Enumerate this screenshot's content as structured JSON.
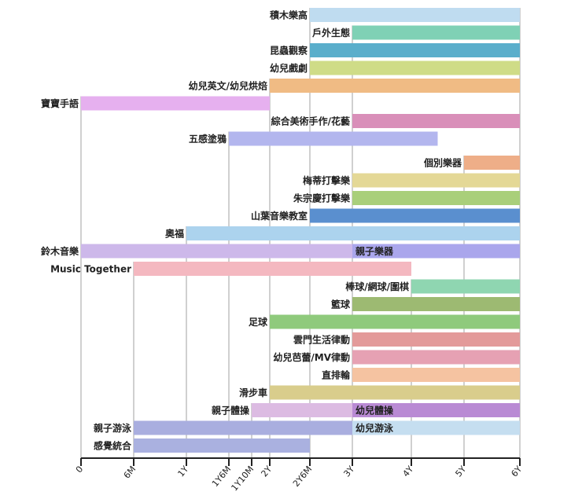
{
  "chart_data": {
    "type": "bar",
    "orientation": "horizontal-range",
    "title": "",
    "xlabel": "",
    "ylabel": "",
    "x_unit": "months of age",
    "xlim": [
      0,
      72
    ],
    "x_scale": "nonlinear (tick spacing as shown)",
    "grid": "vertical lines at ticks",
    "ticks": [
      {
        "label": "0",
        "months": 0
      },
      {
        "label": "6M",
        "months": 6
      },
      {
        "label": "1Y",
        "months": 12
      },
      {
        "label": "1Y6M",
        "months": 18
      },
      {
        "label": "1Y10M",
        "months": 22
      },
      {
        "label": "2Y",
        "months": 24
      },
      {
        "label": "2Y6M",
        "months": 30
      },
      {
        "label": "3Y",
        "months": 36
      },
      {
        "label": "4Y",
        "months": 48
      },
      {
        "label": "5Y",
        "months": 60
      },
      {
        "label": "6Y",
        "months": 72
      }
    ],
    "rows": [
      {
        "label": "積木樂高",
        "segments": [
          {
            "start": 30,
            "end": 72,
            "color": "#bfdcf0"
          }
        ]
      },
      {
        "label": "戶外生態",
        "segments": [
          {
            "start": 36,
            "end": 72,
            "color": "#7fd1b5"
          }
        ]
      },
      {
        "label": "昆蟲觀察",
        "segments": [
          {
            "start": 30,
            "end": 72,
            "color": "#5aaecb"
          }
        ]
      },
      {
        "label": "幼兒戲劇",
        "segments": [
          {
            "start": 30,
            "end": 72,
            "color": "#cfdc87"
          }
        ]
      },
      {
        "label": "幼兒英文/幼兒烘焙",
        "segments": [
          {
            "start": 24,
            "end": 72,
            "color": "#f0bb84"
          }
        ]
      },
      {
        "label": "寶寶手語",
        "segments": [
          {
            "start": 0,
            "end": 24,
            "color": "#e6b0ef"
          }
        ]
      },
      {
        "label": "綜合美術手作/花藝",
        "segments": [
          {
            "start": 36,
            "end": 72,
            "color": "#d98fb9"
          }
        ]
      },
      {
        "label": "五感塗鴉",
        "segments": [
          {
            "start": 18,
            "end": 54,
            "color": "#b3b6ee"
          }
        ]
      },
      {
        "label": "個別樂器",
        "segments": [
          {
            "start": 60,
            "end": 72,
            "color": "#eeae88"
          }
        ],
        "gap_before": true
      },
      {
        "label": "梅蒂打擊樂",
        "segments": [
          {
            "start": 36,
            "end": 72,
            "color": "#e4d896"
          }
        ]
      },
      {
        "label": "朱宗慶打擊樂",
        "segments": [
          {
            "start": 36,
            "end": 72,
            "color": "#a9cf7a"
          }
        ]
      },
      {
        "label": "山葉音樂教室",
        "segments": [
          {
            "start": 30,
            "end": 72,
            "color": "#5a8fcf"
          }
        ]
      },
      {
        "label": "奧福",
        "segments": [
          {
            "start": 12,
            "end": 72,
            "color": "#acd3ee"
          }
        ]
      },
      {
        "label": "鈴木音樂",
        "segments": [
          {
            "start": 0,
            "end": 36,
            "color": "#cdb8ea"
          },
          {
            "start": 36,
            "end": 72,
            "color": "#aaa6ec",
            "label": "親子樂器"
          }
        ]
      },
      {
        "label": "Music Together",
        "segments": [
          {
            "start": 6,
            "end": 48,
            "color": "#f4b8c0"
          }
        ]
      },
      {
        "label": "棒球/網球/圍棋",
        "segments": [
          {
            "start": 48,
            "end": 72,
            "color": "#8fd6b1"
          }
        ]
      },
      {
        "label": "籃球",
        "segments": [
          {
            "start": 36,
            "end": 72,
            "color": "#9dba72"
          }
        ]
      },
      {
        "label": "足球",
        "segments": [
          {
            "start": 24,
            "end": 72,
            "color": "#8fca7c"
          }
        ]
      },
      {
        "label": "雲門生活律動",
        "segments": [
          {
            "start": 36,
            "end": 72,
            "color": "#e39a9a"
          }
        ]
      },
      {
        "label": "幼兒芭蕾/MV律動",
        "segments": [
          {
            "start": 36,
            "end": 72,
            "color": "#e6a1b3"
          }
        ]
      },
      {
        "label": "直排輪",
        "segments": [
          {
            "start": 36,
            "end": 72,
            "color": "#f5c3a1"
          }
        ]
      },
      {
        "label": "滑步車",
        "segments": [
          {
            "start": 24,
            "end": 72,
            "color": "#d9cd8c"
          }
        ]
      },
      {
        "label": "親子體操",
        "segments": [
          {
            "start": 22,
            "end": 36,
            "color": "#dcbbe2"
          },
          {
            "start": 36,
            "end": 72,
            "color": "#b98ad4",
            "label": "幼兒體操"
          }
        ]
      },
      {
        "label": "親子游泳",
        "segments": [
          {
            "start": 6,
            "end": 36,
            "color": "#a9aedf"
          },
          {
            "start": 36,
            "end": 72,
            "color": "#c5def0",
            "label": "幼兒游泳"
          }
        ]
      },
      {
        "label": "感覺統合",
        "segments": [
          {
            "start": 6,
            "end": 30,
            "color": "#aab1e0"
          }
        ]
      }
    ]
  }
}
